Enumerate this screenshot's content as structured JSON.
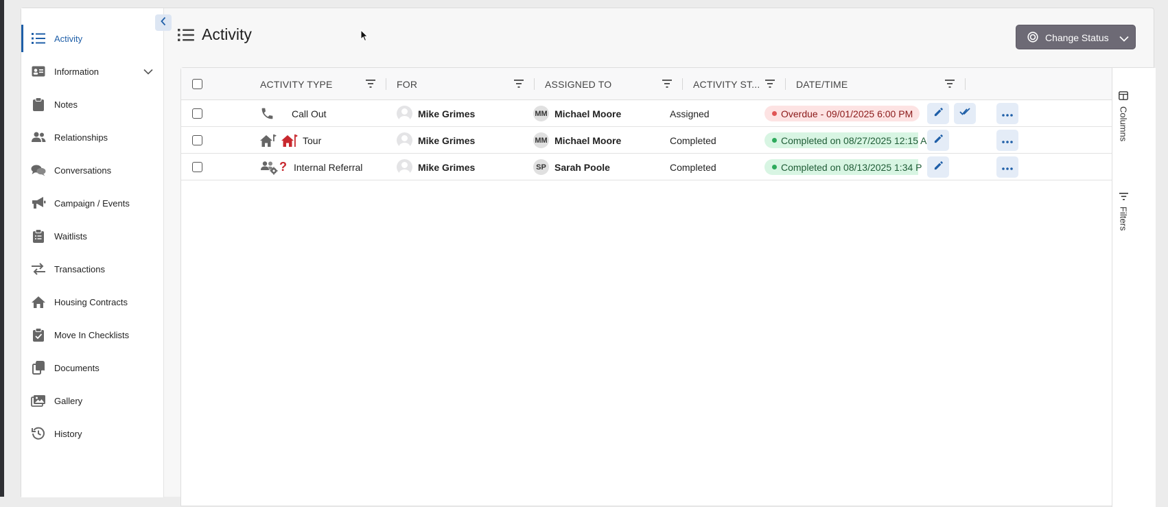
{
  "sidebar": {
    "items": [
      {
        "label": "Activity",
        "icon": "list-icon",
        "active": true
      },
      {
        "label": "Information",
        "icon": "id-card-icon",
        "has_submenu": true
      },
      {
        "label": "Notes",
        "icon": "clipboard-icon"
      },
      {
        "label": "Relationships",
        "icon": "users-icon"
      },
      {
        "label": "Conversations",
        "icon": "comments-icon"
      },
      {
        "label": "Campaign / Events",
        "icon": "megaphone-icon"
      },
      {
        "label": "Waitlists",
        "icon": "clipboard-list-icon"
      },
      {
        "label": "Transactions",
        "icon": "arrows-exchange-icon"
      },
      {
        "label": "Housing Contracts",
        "icon": "house-icon"
      },
      {
        "label": "Move In Checklists",
        "icon": "clipboard-check-icon"
      },
      {
        "label": "Documents",
        "icon": "copy-icon"
      },
      {
        "label": "Gallery",
        "icon": "images-icon"
      },
      {
        "label": "History",
        "icon": "history-icon"
      }
    ]
  },
  "header": {
    "title": "Activity",
    "change_status_label": "Change Status"
  },
  "table": {
    "columns": [
      {
        "label": "ACTIVITY TYPE"
      },
      {
        "label": "FOR"
      },
      {
        "label": "ASSIGNED TO"
      },
      {
        "label": "ACTIVITY ST..."
      },
      {
        "label": "DATE/TIME"
      }
    ],
    "rows": [
      {
        "activity_type": "Call Out",
        "type_icons": [
          "phone-icon"
        ],
        "for": "Mike Grimes",
        "assignee_initials": "MM",
        "assigned_to": "Michael Moore",
        "status": "Assigned",
        "date_badge": "Overdue - 09/01/2025 6:00 PM",
        "date_state": "overdue",
        "has_complete_action": true
      },
      {
        "activity_type": "Tour",
        "type_icons": [
          "house-tour-icon",
          "house-flag-icon"
        ],
        "for": "Mike Grimes",
        "assignee_initials": "MM",
        "assigned_to": "Michael Moore",
        "status": "Completed",
        "date_badge": "Completed on 08/27/2025 12:15 A",
        "date_state": "completed",
        "has_complete_action": false
      },
      {
        "activity_type": "Internal Referral",
        "type_icons": [
          "users-cog-icon",
          "question-icon"
        ],
        "for": "Mike Grimes",
        "assignee_initials": "SP",
        "assigned_to": "Sarah Poole",
        "status": "Completed",
        "date_badge": "Completed on 08/13/2025 1:34 P",
        "date_state": "completed",
        "has_complete_action": false
      }
    ]
  },
  "side_panel": {
    "columns_label": "Columns",
    "filters_label": "Filters"
  },
  "colors": {
    "accent": "#1f5fa8",
    "button_bg": "#6d6a75",
    "overdue_bg": "#fde3e3",
    "completed_bg": "#d8f5e3"
  }
}
